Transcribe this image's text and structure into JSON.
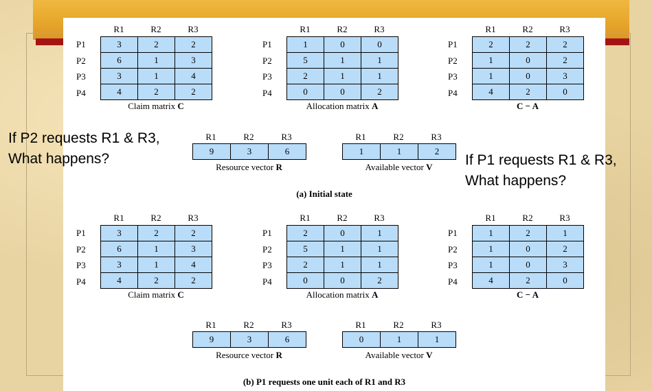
{
  "matrix_headers": [
    "R1",
    "R2",
    "R3"
  ],
  "process_labels": [
    "P1",
    "P2",
    "P3",
    "P4"
  ],
  "initial": {
    "claim": {
      "caption_prefix": "Claim matrix ",
      "caption_symbol": "C",
      "rows": [
        [
          "3",
          "2",
          "2"
        ],
        [
          "6",
          "1",
          "3"
        ],
        [
          "3",
          "1",
          "4"
        ],
        [
          "4",
          "2",
          "2"
        ]
      ]
    },
    "allocation": {
      "caption_prefix": "Allocation matrix ",
      "caption_symbol": "A",
      "rows": [
        [
          "1",
          "0",
          "0"
        ],
        [
          "5",
          "1",
          "1"
        ],
        [
          "2",
          "1",
          "1"
        ],
        [
          "0",
          "0",
          "2"
        ]
      ]
    },
    "need": {
      "caption_prefix": "",
      "caption_symbol": "C − A",
      "rows": [
        [
          "2",
          "2",
          "2"
        ],
        [
          "1",
          "0",
          "2"
        ],
        [
          "1",
          "0",
          "3"
        ],
        [
          "4",
          "2",
          "0"
        ]
      ]
    },
    "resource": {
      "caption_prefix": "Resource vector ",
      "caption_symbol": "R",
      "values": [
        "9",
        "3",
        "6"
      ]
    },
    "available": {
      "caption_prefix": "Available vector ",
      "caption_symbol": "V",
      "values": [
        "1",
        "1",
        "2"
      ]
    },
    "title": "(a) Initial state"
  },
  "after": {
    "claim": {
      "caption_prefix": "Claim matrix ",
      "caption_symbol": "C",
      "rows": [
        [
          "3",
          "2",
          "2"
        ],
        [
          "6",
          "1",
          "3"
        ],
        [
          "3",
          "1",
          "4"
        ],
        [
          "4",
          "2",
          "2"
        ]
      ]
    },
    "allocation": {
      "caption_prefix": "Allocation matrix ",
      "caption_symbol": "A",
      "rows": [
        [
          "2",
          "0",
          "1"
        ],
        [
          "5",
          "1",
          "1"
        ],
        [
          "2",
          "1",
          "1"
        ],
        [
          "0",
          "0",
          "2"
        ]
      ]
    },
    "need": {
      "caption_prefix": "",
      "caption_symbol": "C − A",
      "rows": [
        [
          "1",
          "2",
          "1"
        ],
        [
          "1",
          "0",
          "2"
        ],
        [
          "1",
          "0",
          "3"
        ],
        [
          "4",
          "2",
          "0"
        ]
      ]
    },
    "resource": {
      "caption_prefix": "Resource vector ",
      "caption_symbol": "R",
      "values": [
        "9",
        "3",
        "6"
      ]
    },
    "available": {
      "caption_prefix": "Available vector ",
      "caption_symbol": "V",
      "values": [
        "0",
        "1",
        "1"
      ]
    },
    "title": "(b) P1 requests one unit each of R1 and R3"
  },
  "overlays": {
    "left_line1": "If P2 requests R1 & R3,",
    "left_line2": "What happens?",
    "right_line1": "If P1 requests R1 & R3,",
    "right_line2": "What happens?"
  }
}
